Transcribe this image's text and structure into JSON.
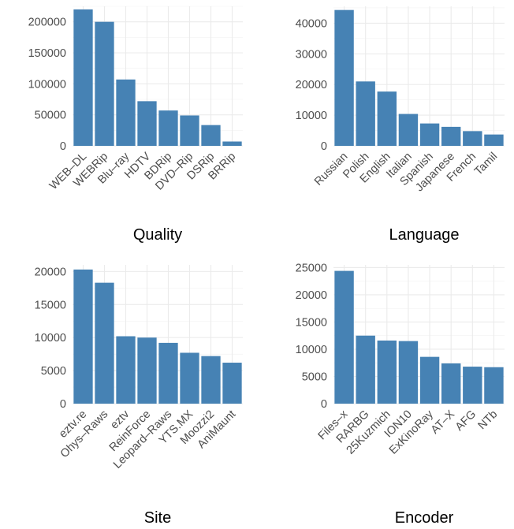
{
  "bar_color": "#4682B4",
  "chart_data": [
    {
      "type": "bar",
      "title": "",
      "xlabel": "Quality",
      "ylabel": "",
      "categories": [
        "WEB–DL",
        "WEBRip",
        "Blu–ray",
        "HDTV",
        "BDRip",
        "DVD–Rip",
        "DSRip",
        "BRRip"
      ],
      "values": [
        220000,
        200000,
        107000,
        72000,
        57000,
        49000,
        33500,
        7000
      ],
      "ylim": [
        0,
        225000
      ],
      "yticks": [
        0,
        50000,
        100000,
        150000,
        200000
      ],
      "grid": true
    },
    {
      "type": "bar",
      "title": "",
      "xlabel": "Language",
      "ylabel": "",
      "categories": [
        "Russian",
        "Polish",
        "English",
        "Italian",
        "Spanish",
        "Japanese",
        "French",
        "Tamil"
      ],
      "values": [
        44300,
        21000,
        17700,
        10400,
        7300,
        6200,
        4800,
        3700
      ],
      "ylim": [
        0,
        45500
      ],
      "yticks": [
        0,
        10000,
        20000,
        30000,
        40000
      ],
      "grid": true
    },
    {
      "type": "bar",
      "title": "",
      "xlabel": "Site",
      "ylabel": "",
      "categories": [
        "eztv.re",
        "Ohys–Raws",
        "eztv",
        "ReinForce",
        "Leopard–Raws",
        "YTS.MX",
        "Moozzi2",
        "AniMaunt"
      ],
      "values": [
        20300,
        18300,
        10200,
        10000,
        9200,
        7700,
        7200,
        6200
      ],
      "ylim": [
        0,
        21000
      ],
      "yticks": [
        0,
        5000,
        10000,
        15000,
        20000
      ],
      "grid": true
    },
    {
      "type": "bar",
      "title": "",
      "xlabel": "Encoder",
      "ylabel": "",
      "categories": [
        "Files–x",
        "RARBG",
        "25Kuzmich",
        "ION10",
        "ExKinoRay",
        "AT–X",
        "AFG",
        "NTb"
      ],
      "values": [
        24400,
        12500,
        11600,
        11500,
        8600,
        7400,
        6800,
        6700
      ],
      "ylim": [
        0,
        25500
      ],
      "yticks": [
        0,
        5000,
        10000,
        15000,
        20000,
        25000
      ],
      "grid": true
    }
  ]
}
